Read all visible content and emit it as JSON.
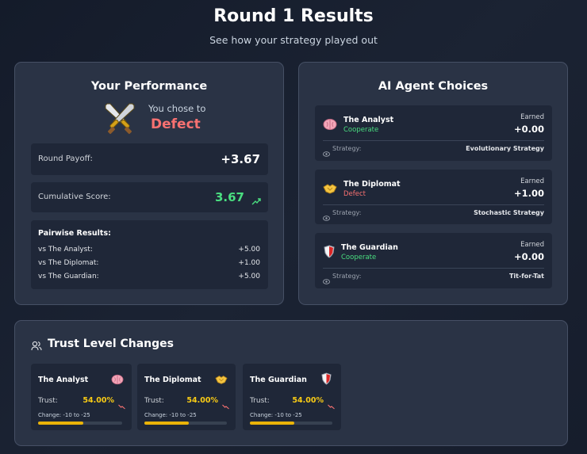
{
  "header": {
    "title": "Round 1 Results",
    "subtitle": "See how your strategy played out"
  },
  "performance": {
    "title": "Your Performance",
    "icon": "crossed-swords-icon",
    "chose_label": "You chose to",
    "choice": "Defect",
    "round_payoff_label": "Round Payoff:",
    "round_payoff": "+3.67",
    "cumulative_label": "Cumulative Score:",
    "cumulative": "3.67",
    "pairwise_title": "Pairwise Results:",
    "pairwise": [
      {
        "label": "vs The Analyst:",
        "value": "+5.00"
      },
      {
        "label": "vs The Diplomat:",
        "value": "+1.00"
      },
      {
        "label": "vs The Guardian:",
        "value": "+5.00"
      }
    ]
  },
  "agents": {
    "title": "AI Agent Choices",
    "earned_label": "Earned",
    "strategy_label": "Strategy:",
    "items": [
      {
        "name": "The Analyst",
        "icon": "brain-icon",
        "choice": "Cooperate",
        "earned": "+0.00",
        "strategy": "Evolutionary Strategy"
      },
      {
        "name": "The Diplomat",
        "icon": "handshake-icon",
        "choice": "Defect",
        "earned": "+1.00",
        "strategy": "Stochastic Strategy"
      },
      {
        "name": "The Guardian",
        "icon": "shield-icon",
        "choice": "Cooperate",
        "earned": "+0.00",
        "strategy": "Tit-for-Tat"
      }
    ]
  },
  "trust": {
    "title": "Trust Level Changes",
    "trust_label": "Trust:",
    "items": [
      {
        "name": "The Analyst",
        "icon": "brain-icon",
        "trust": "54.00%",
        "trust_fraction": 0.54,
        "change": "Change: -10 to -25"
      },
      {
        "name": "The Diplomat",
        "icon": "handshake-icon",
        "trust": "54.00%",
        "trust_fraction": 0.54,
        "change": "Change: -10 to -25"
      },
      {
        "name": "The Guardian",
        "icon": "shield-icon",
        "trust": "54.00%",
        "trust_fraction": 0.54,
        "change": "Change: -10 to -25"
      }
    ]
  },
  "colors": {
    "cooperate": "#4ade80",
    "defect": "#f87171",
    "trust_bar": "#eab308"
  }
}
